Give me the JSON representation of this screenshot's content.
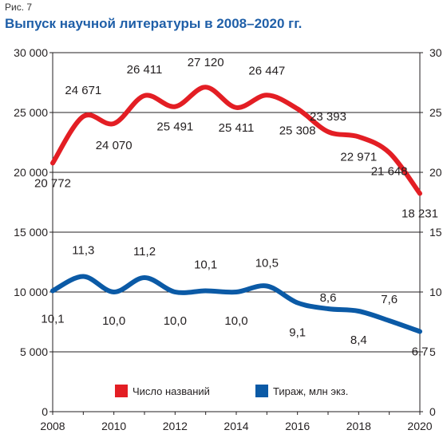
{
  "figure_label": "Рис. 7",
  "chart_data": {
    "type": "line",
    "title": "Выпуск научной литературы в 2008–2020 гг.",
    "x": [
      2008,
      2009,
      2010,
      2011,
      2012,
      2013,
      2014,
      2015,
      2016,
      2017,
      2018,
      2019,
      2020
    ],
    "x_ticks": [
      "2008",
      "2010",
      "2012",
      "2014",
      "2016",
      "2018",
      "2020"
    ],
    "left_axis": {
      "ylim": [
        0,
        30000
      ],
      "ticks": [
        "0",
        "5 000",
        "10 000",
        "15 000",
        "20 000",
        "25 000",
        "30 000"
      ]
    },
    "right_axis": {
      "ylim": [
        0,
        30
      ],
      "ticks": [
        "0",
        "5",
        "10",
        "15",
        "20",
        "25",
        "30"
      ]
    },
    "gridlines": true,
    "legend_position": "bottom-center",
    "series": [
      {
        "name": "Число названий",
        "axis": "left",
        "color": "#e31e24",
        "values": [
          20772,
          24671,
          24070,
          26411,
          25491,
          27120,
          25411,
          26447,
          25308,
          23393,
          22971,
          21648,
          18231
        ],
        "labels": [
          "20 772",
          "24 671",
          "24 070",
          "26 411",
          "25 491",
          "27 120",
          "25 411",
          "26 447",
          "25 308",
          "23 393",
          "22 971",
          "21 648",
          "18 231"
        ]
      },
      {
        "name": "Тираж, млн экз.",
        "axis": "right",
        "color": "#0b5aa6",
        "values": [
          10.1,
          11.3,
          10.0,
          11.2,
          10.0,
          10.1,
          10.0,
          10.5,
          9.1,
          8.6,
          8.4,
          7.6,
          6.7
        ],
        "labels": [
          "10,1",
          "11,3",
          "10,0",
          "11,2",
          "10,0",
          "10,1",
          "10,0",
          "10,5",
          "9,1",
          "8,6",
          "8,4",
          "7,6",
          "6,7"
        ]
      }
    ]
  }
}
